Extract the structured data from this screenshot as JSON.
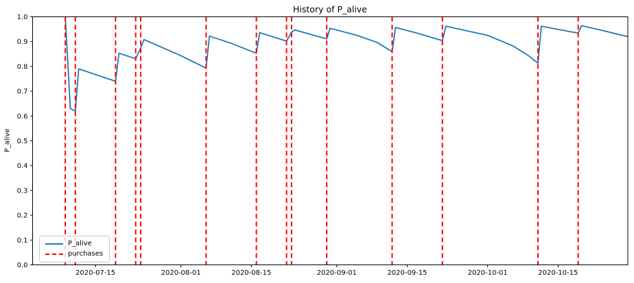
{
  "chart_data": {
    "type": "line",
    "title": "History of P_alive",
    "xlabel": "",
    "ylabel": "P_alive",
    "ylim": [
      0.0,
      1.0
    ],
    "grid": false,
    "y_ticks": [
      {
        "v": 0.0,
        "label": "0.0"
      },
      {
        "v": 0.1,
        "label": "0.1"
      },
      {
        "v": 0.2,
        "label": "0.2"
      },
      {
        "v": 0.3,
        "label": "0.3"
      },
      {
        "v": 0.4,
        "label": "0.4"
      },
      {
        "v": 0.5,
        "label": "0.5"
      },
      {
        "v": 0.6,
        "label": "0.6"
      },
      {
        "v": 0.7,
        "label": "0.7"
      },
      {
        "v": 0.8,
        "label": "0.8"
      },
      {
        "v": 0.9,
        "label": "0.9"
      },
      {
        "v": 1.0,
        "label": "1.0"
      }
    ],
    "x_axis": {
      "start": "2020-07-02T12:00",
      "end": "2020-10-28T21:00",
      "ticks": [
        {
          "date": "2020-07-15",
          "label": "2020-07-15"
        },
        {
          "date": "2020-08-01",
          "label": "2020-08-01"
        },
        {
          "date": "2020-08-15",
          "label": "2020-08-15"
        },
        {
          "date": "2020-09-01",
          "label": "2020-09-01"
        },
        {
          "date": "2020-09-15",
          "label": "2020-09-15"
        },
        {
          "date": "2020-10-01",
          "label": "2020-10-01"
        },
        {
          "date": "2020-10-15",
          "label": "2020-10-15"
        }
      ]
    },
    "series": [
      {
        "name": "P_alive",
        "color": "#1f77b4",
        "style": "solid",
        "points": [
          [
            "2020-07-09",
            1.0
          ],
          [
            "2020-07-10",
            0.63
          ],
          [
            "2020-07-11",
            0.62
          ],
          [
            "2020-07-11T16:00",
            0.79
          ],
          [
            "2020-07-19",
            0.74
          ],
          [
            "2020-07-19T16:00",
            0.853
          ],
          [
            "2020-07-23",
            0.831
          ],
          [
            "2020-07-24",
            0.875
          ],
          [
            "2020-07-24T16:00",
            0.908
          ],
          [
            "2020-08-01",
            0.843
          ],
          [
            "2020-08-06",
            0.793
          ],
          [
            "2020-08-06T16:00",
            0.922
          ],
          [
            "2020-08-11",
            0.893
          ],
          [
            "2020-08-16",
            0.853
          ],
          [
            "2020-08-16T16:00",
            0.936
          ],
          [
            "2020-08-22",
            0.902
          ],
          [
            "2020-08-23",
            0.938
          ],
          [
            "2020-08-23T16:00",
            0.947
          ],
          [
            "2020-08-30",
            0.911
          ],
          [
            "2020-08-30T16:00",
            0.954
          ],
          [
            "2020-09-05",
            0.925
          ],
          [
            "2020-09-09",
            0.897
          ],
          [
            "2020-09-12",
            0.859
          ],
          [
            "2020-09-12T16:00",
            0.957
          ],
          [
            "2020-09-17",
            0.934
          ],
          [
            "2020-09-22",
            0.904
          ],
          [
            "2020-09-22T16:00",
            0.962
          ],
          [
            "2020-10-01",
            0.925
          ],
          [
            "2020-10-06",
            0.883
          ],
          [
            "2020-10-09",
            0.845
          ],
          [
            "2020-10-11",
            0.813
          ],
          [
            "2020-10-11T16:00",
            0.962
          ],
          [
            "2020-10-19",
            0.934
          ],
          [
            "2020-10-19T16:00",
            0.964
          ],
          [
            "2020-10-24",
            0.944
          ],
          [
            "2020-10-28T21:00",
            0.92
          ]
        ]
      }
    ],
    "purchases": {
      "name": "purchases",
      "color": "#ff0000",
      "style": "dashed",
      "dates": [
        "2020-07-09",
        "2020-07-11",
        "2020-07-19",
        "2020-07-23",
        "2020-07-24",
        "2020-08-06",
        "2020-08-16",
        "2020-08-22",
        "2020-08-23",
        "2020-08-30",
        "2020-09-12",
        "2020-09-22",
        "2020-10-11",
        "2020-10-19"
      ]
    },
    "legend": {
      "position": "lower left",
      "entries": [
        {
          "label": "P_alive",
          "style": "solid",
          "color": "#1f77b4"
        },
        {
          "label": "purchases",
          "style": "dashed",
          "color": "#ff0000"
        }
      ]
    }
  }
}
